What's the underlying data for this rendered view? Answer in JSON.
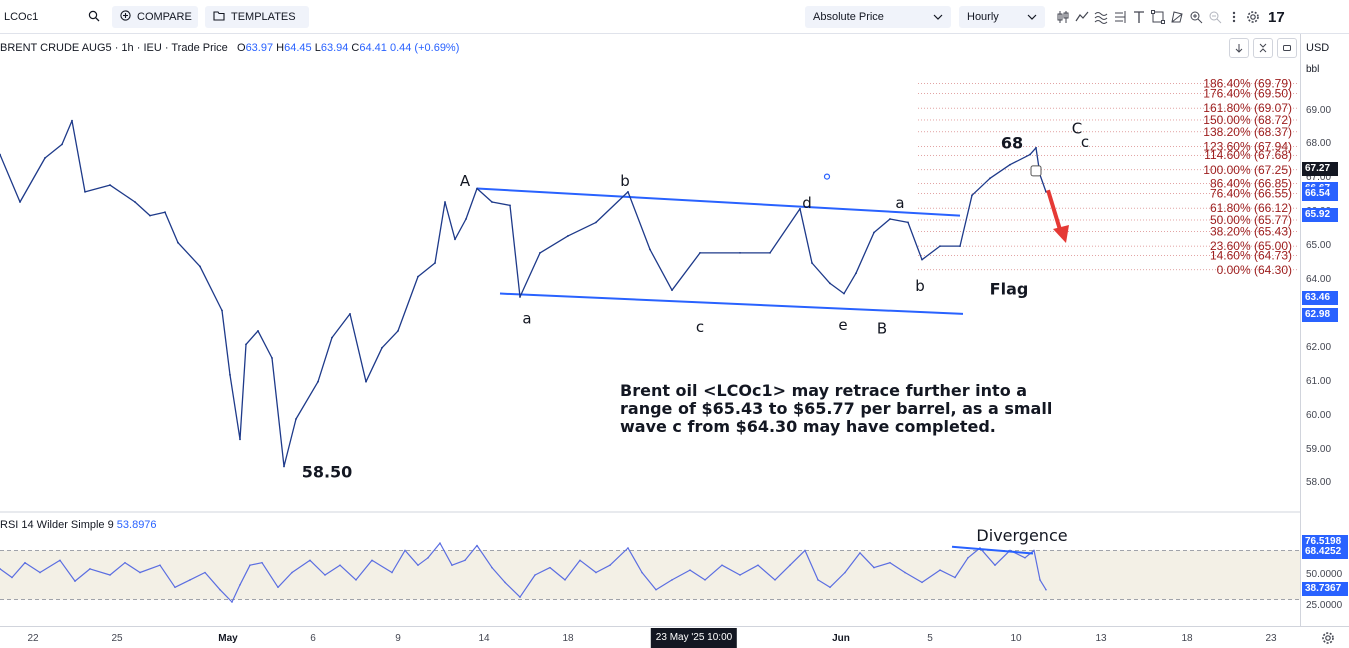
{
  "toolbar": {
    "symbol": "LCOc1",
    "compare_label": "COMPARE",
    "templates_label": "TEMPLATES",
    "price_mode": "Absolute Price",
    "interval": "Hourly",
    "icons": [
      "candles-icon",
      "indicators-icon",
      "overlay-icon",
      "scale-icon",
      "text-icon",
      "fullscreen-icon",
      "drawing-icon",
      "zoom-in-icon",
      "zoom-out-icon",
      "more-icon",
      "settings-icon"
    ],
    "logo": "17"
  },
  "legend": {
    "title": "BRENT CRUDE AUG5 · 1h · IEU · Trade Price",
    "open_label": "O",
    "open": "63.97",
    "high_label": "H",
    "high": "64.45",
    "low_label": "L",
    "low": "63.94",
    "close_label": "C",
    "close": "64.41",
    "change": "0.44 (+0.69%)"
  },
  "scale": {
    "currency": "USD",
    "unit": "bbl",
    "ticks": [
      "69.00",
      "68.00",
      "67.00",
      "66.00",
      "65.00",
      "64.00",
      "63.00",
      "62.00",
      "61.00",
      "60.00",
      "59.00",
      "58.00"
    ],
    "badges": [
      {
        "value": "67.27",
        "color": "#131722"
      },
      {
        "value": "66.67",
        "color": "#2962ff"
      },
      {
        "value": "66.54",
        "color": "#2962ff"
      },
      {
        "value": "65.92",
        "color": "#2962ff"
      },
      {
        "value": "63.46",
        "color": "#2962ff"
      },
      {
        "value": "62.98",
        "color": "#2962ff"
      }
    ]
  },
  "rsi": {
    "label": "RSI 14 Wilder Simple 9",
    "value": "53.8976",
    "ticks": [
      "50.0000",
      "25.0000"
    ],
    "badges": [
      {
        "value": "76.5198",
        "color": "#2962ff"
      },
      {
        "value": "68.4252",
        "color": "#2962ff"
      },
      {
        "value": "38.7367",
        "color": "#2962ff"
      }
    ]
  },
  "time_axis": {
    "ticks": [
      {
        "label": "22"
      },
      {
        "label": "25"
      },
      {
        "label": "May",
        "bold": true
      },
      {
        "label": "6"
      },
      {
        "label": "9"
      },
      {
        "label": "14"
      },
      {
        "label": "18"
      },
      {
        "label": "Jun",
        "bold": true
      },
      {
        "label": "5"
      },
      {
        "label": "10"
      },
      {
        "label": "13"
      },
      {
        "label": "18"
      },
      {
        "label": "23"
      }
    ],
    "cursor": "23 May '25   10:00"
  },
  "chart_data": {
    "type": "line",
    "title": "BRENT CRUDE AUG5",
    "ylim": [
      57.3,
      70.5
    ],
    "price_path": [
      [
        0,
        67.7
      ],
      [
        20,
        66.3
      ],
      [
        45,
        67.6
      ],
      [
        62,
        68.0
      ],
      [
        72,
        68.7
      ],
      [
        85,
        66.6
      ],
      [
        110,
        66.8
      ],
      [
        135,
        66.3
      ],
      [
        150,
        65.9
      ],
      [
        165,
        66.0
      ],
      [
        178,
        65.1
      ],
      [
        200,
        64.4
      ],
      [
        222,
        63.1
      ],
      [
        230,
        61.2
      ],
      [
        240,
        59.3
      ],
      [
        246,
        62.1
      ],
      [
        258,
        62.5
      ],
      [
        272,
        61.7
      ],
      [
        284,
        58.5
      ],
      [
        296,
        59.9
      ],
      [
        318,
        61.0
      ],
      [
        332,
        62.3
      ],
      [
        350,
        63.0
      ],
      [
        366,
        61.0
      ],
      [
        382,
        62.0
      ],
      [
        398,
        62.5
      ],
      [
        418,
        64.1
      ],
      [
        435,
        64.5
      ],
      [
        445,
        66.3
      ],
      [
        455,
        65.2
      ],
      [
        466,
        65.8
      ],
      [
        477,
        66.7
      ],
      [
        492,
        66.3
      ],
      [
        510,
        66.2
      ],
      [
        520,
        63.5
      ],
      [
        540,
        64.8
      ],
      [
        568,
        65.3
      ],
      [
        596,
        65.7
      ],
      [
        628,
        66.6
      ],
      [
        650,
        64.9
      ],
      [
        672,
        63.7
      ],
      [
        700,
        64.8
      ],
      [
        740,
        64.8
      ],
      [
        770,
        64.8
      ],
      [
        800,
        66.1
      ],
      [
        812,
        64.5
      ],
      [
        830,
        63.9
      ],
      [
        844,
        63.6
      ],
      [
        856,
        64.2
      ],
      [
        874,
        65.4
      ],
      [
        890,
        65.8
      ],
      [
        908,
        65.7
      ],
      [
        922,
        64.6
      ],
      [
        940,
        65.0
      ],
      [
        960,
        65.0
      ],
      [
        972,
        66.5
      ],
      [
        990,
        67.0
      ],
      [
        1010,
        67.4
      ],
      [
        1030,
        67.7
      ],
      [
        1036,
        67.9
      ],
      [
        1040,
        67.1
      ],
      [
        1046,
        66.6
      ]
    ],
    "channel": {
      "upper": [
        [
          477,
          66.7
        ],
        [
          960,
          65.9
        ]
      ],
      "lower": [
        [
          500,
          63.6
        ],
        [
          963,
          63.0
        ]
      ]
    },
    "fibonacci": [
      {
        "level": "186.40%",
        "price": 69.79
      },
      {
        "level": "176.40%",
        "price": 69.5
      },
      {
        "level": "161.80%",
        "price": 69.07
      },
      {
        "level": "150.00%",
        "price": 68.72
      },
      {
        "level": "138.20%",
        "price": 68.37
      },
      {
        "level": "123.60%",
        "price": 67.94
      },
      {
        "level": "114.60%",
        "price": 67.68
      },
      {
        "level": "100.00%",
        "price": 67.25
      },
      {
        "level": "86.40%",
        "price": 66.85
      },
      {
        "level": "76.40%",
        "price": 66.55
      },
      {
        "level": "61.80%",
        "price": 66.12
      },
      {
        "level": "50.00%",
        "price": 65.77
      },
      {
        "level": "38.20%",
        "price": 65.43
      },
      {
        "level": "23.60%",
        "price": 65.0
      },
      {
        "level": "14.60%",
        "price": 64.73
      },
      {
        "level": "0.00%",
        "price": 64.3
      }
    ],
    "wave_labels": [
      {
        "text": "A",
        "x": 465,
        "price": 66.95,
        "bold": false
      },
      {
        "text": "b",
        "x": 625,
        "price": 66.95,
        "bold": false
      },
      {
        "text": "d",
        "x": 807,
        "price": 66.3,
        "bold": false
      },
      {
        "text": "a",
        "x": 900,
        "price": 66.3,
        "bold": false
      },
      {
        "text": "68",
        "x": 1012,
        "price": 68.05,
        "bold": true
      },
      {
        "text": "C",
        "x": 1077,
        "price": 68.5,
        "bold": false
      },
      {
        "text": "c",
        "x": 1085,
        "price": 68.1,
        "bold": false
      },
      {
        "text": "a",
        "x": 527,
        "price": 62.9,
        "bold": false
      },
      {
        "text": "c",
        "x": 700,
        "price": 62.65,
        "bold": false
      },
      {
        "text": "e",
        "x": 843,
        "price": 62.7,
        "bold": false
      },
      {
        "text": "B",
        "x": 882,
        "price": 62.6,
        "bold": false
      },
      {
        "text": "b",
        "x": 920,
        "price": 63.85,
        "bold": false
      },
      {
        "text": "Flag",
        "x": 1009,
        "price": 63.75,
        "bold": true
      },
      {
        "text": "58.50",
        "x": 327,
        "price": 58.35,
        "bold": true
      }
    ],
    "annotation": [
      "Brent oil <LCOc1> may retrace further into a",
      "range of $65.43 to $65.77 per barrel, as a small",
      "wave c from $64.30 may have completed."
    ],
    "rsi_ylim": [
      15,
      85
    ],
    "rsi_band": [
      30,
      70
    ],
    "rsi_path": [
      [
        0,
        55
      ],
      [
        12,
        48
      ],
      [
        25,
        60
      ],
      [
        40,
        52
      ],
      [
        60,
        62
      ],
      [
        75,
        45
      ],
      [
        90,
        55
      ],
      [
        110,
        50
      ],
      [
        125,
        60
      ],
      [
        140,
        52
      ],
      [
        160,
        58
      ],
      [
        175,
        40
      ],
      [
        190,
        46
      ],
      [
        205,
        52
      ],
      [
        220,
        38
      ],
      [
        232,
        28
      ],
      [
        240,
        42
      ],
      [
        250,
        58
      ],
      [
        262,
        60
      ],
      [
        278,
        40
      ],
      [
        292,
        52
      ],
      [
        310,
        62
      ],
      [
        325,
        50
      ],
      [
        340,
        58
      ],
      [
        356,
        46
      ],
      [
        372,
        62
      ],
      [
        392,
        52
      ],
      [
        405,
        70
      ],
      [
        418,
        58
      ],
      [
        428,
        64
      ],
      [
        440,
        76
      ],
      [
        452,
        58
      ],
      [
        465,
        62
      ],
      [
        477,
        74
      ],
      [
        492,
        56
      ],
      [
        505,
        44
      ],
      [
        520,
        32
      ],
      [
        535,
        50
      ],
      [
        550,
        56
      ],
      [
        565,
        46
      ],
      [
        580,
        62
      ],
      [
        596,
        52
      ],
      [
        610,
        58
      ],
      [
        628,
        72
      ],
      [
        642,
        52
      ],
      [
        656,
        38
      ],
      [
        672,
        46
      ],
      [
        690,
        54
      ],
      [
        705,
        46
      ],
      [
        722,
        58
      ],
      [
        740,
        50
      ],
      [
        758,
        58
      ],
      [
        775,
        46
      ],
      [
        790,
        58
      ],
      [
        805,
        70
      ],
      [
        818,
        46
      ],
      [
        830,
        40
      ],
      [
        845,
        52
      ],
      [
        860,
        68
      ],
      [
        874,
        56
      ],
      [
        890,
        60
      ],
      [
        905,
        52
      ],
      [
        922,
        44
      ],
      [
        940,
        54
      ],
      [
        955,
        48
      ],
      [
        968,
        64
      ],
      [
        980,
        72
      ],
      [
        995,
        58
      ],
      [
        1010,
        70
      ],
      [
        1025,
        64
      ],
      [
        1034,
        70
      ],
      [
        1040,
        46
      ],
      [
        1046,
        38
      ]
    ],
    "rsi_divergence": [
      [
        952,
        73
      ],
      [
        1033,
        67.5
      ]
    ],
    "rsi_labels": [
      {
        "text": "Divergence",
        "x": 1022,
        "value": 80
      }
    ]
  }
}
